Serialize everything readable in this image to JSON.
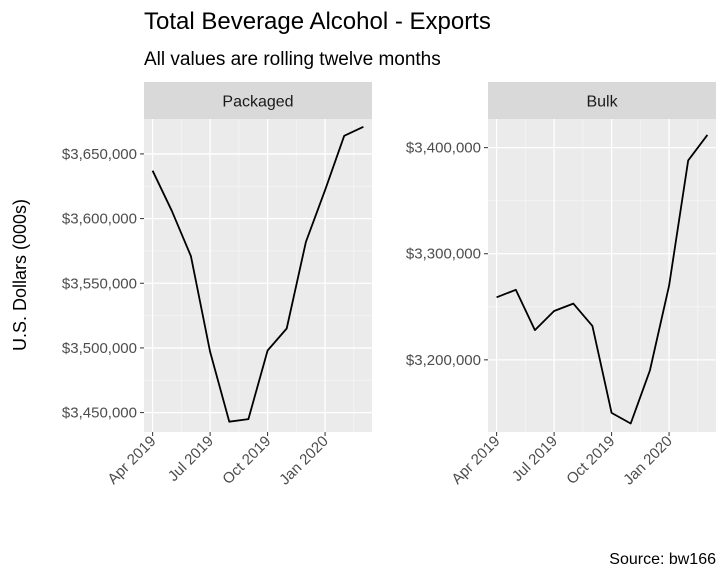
{
  "chart_data": {
    "title": "Total Beverage Alcohol - Exports",
    "subtitle": "All values are rolling twelve months",
    "ylabel": "U.S. Dollars (000s)",
    "caption": "Source: bw166",
    "type": "line",
    "x_tick_labels": [
      "Apr 2019",
      "Jul 2019",
      "Oct 2019",
      "Jan 2020"
    ],
    "colors": {
      "panel_bg": "#EBEBEB",
      "strip_bg": "#D9D9D9",
      "grid_major": "#FFFFFF",
      "line": "#000000",
      "tick_text": "#4D4D4D",
      "text": "#000000"
    },
    "panels": [
      {
        "name": "Packaged",
        "y_ticks": [
          3450000,
          3500000,
          3550000,
          3600000,
          3650000
        ],
        "y_tick_labels": [
          "$3,450,000",
          "$3,500,000",
          "$3,550,000",
          "$3,600,000",
          "$3,650,000"
        ],
        "ylim": [
          3435000,
          3677000
        ],
        "x": [
          "2019-04",
          "2019-05",
          "2019-06",
          "2019-07",
          "2019-08",
          "2019-09",
          "2019-10",
          "2019-11",
          "2019-12",
          "2020-01",
          "2020-02",
          "2020-03"
        ],
        "values": [
          3637000,
          3606000,
          3571000,
          3497000,
          3443000,
          3445000,
          3498000,
          3515000,
          3582000,
          3622000,
          3664000,
          3671000
        ]
      },
      {
        "name": "Bulk",
        "y_ticks": [
          3200000,
          3300000,
          3400000
        ],
        "y_tick_labels": [
          "$3,200,000",
          "$3,300,000",
          "$3,400,000"
        ],
        "ylim": [
          3132000,
          3427000
        ],
        "x": [
          "2019-04",
          "2019-05",
          "2019-06",
          "2019-07",
          "2019-08",
          "2019-09",
          "2019-10",
          "2019-11",
          "2019-12",
          "2020-01",
          "2020-02",
          "2020-03"
        ],
        "values": [
          3259000,
          3266000,
          3228000,
          3246000,
          3253000,
          3232000,
          3150000,
          3140000,
          3190000,
          3270000,
          3388000,
          3412000
        ]
      }
    ]
  }
}
